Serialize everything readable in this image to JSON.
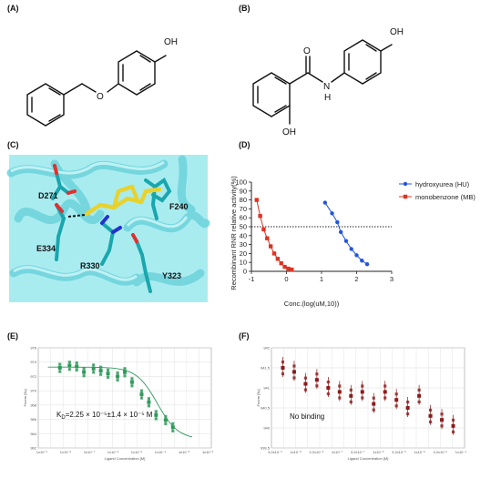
{
  "panels": {
    "a": {
      "label": "(A)",
      "atom_oh": "OH",
      "atom_o": "O"
    },
    "b": {
      "label": "(B)",
      "atom_oh_top": "OH",
      "atom_o": "O",
      "atom_n": "N",
      "atom_h": "H",
      "atom_oh_bottom": "OH"
    },
    "c": {
      "label": "(C)",
      "residues": [
        "D271",
        "F240",
        "E334",
        "R330",
        "Y323"
      ]
    },
    "d": {
      "label": "(D)"
    },
    "e": {
      "label": "(E)",
      "annotation": "K",
      "annotation_sub": "D",
      "annotation_rest": "=2.25 × 10⁻⁵±1.4 × 10⁻⁵ M"
    },
    "f": {
      "label": "(F)",
      "annotation": "No binding"
    }
  },
  "chart_data": [
    {
      "type": "line",
      "panel": "D",
      "xlabel": "Conc.(log(uM,10))",
      "ylabel": "Recombinant RNR relative activity(%)",
      "xlim": [
        -1,
        3
      ],
      "ylim": [
        0,
        100
      ],
      "xticks": [
        "-1",
        "0",
        "1",
        "2",
        "3"
      ],
      "yticks": [
        "0",
        "10",
        "20",
        "30",
        "40",
        "50",
        "60",
        "70",
        "80",
        "90",
        "100"
      ],
      "reference_line_y": 50,
      "series": [
        {
          "name": "hydroxyurea (HU)",
          "color": "#2255dd",
          "marker": "circle",
          "x": [
            1.1,
            1.3,
            1.45,
            1.55,
            1.7,
            1.85,
            2.0,
            2.15,
            2.3
          ],
          "y": [
            77,
            65,
            55,
            44,
            34,
            25,
            18,
            12,
            8
          ]
        },
        {
          "name": "monobenzone (MB)",
          "color": "#dd3322",
          "marker": "square",
          "x": [
            -0.85,
            -0.75,
            -0.65,
            -0.55,
            -0.45,
            -0.35,
            -0.25,
            -0.15,
            -0.05,
            0.05,
            0.15
          ],
          "y": [
            80,
            62,
            47,
            37,
            28,
            20,
            14,
            9,
            5,
            3,
            2
          ]
        }
      ]
    },
    {
      "type": "scatter",
      "panel": "E",
      "xlabel": "Ligand Concentration [M]",
      "ylabel": "Fnorm [‰]",
      "yticks": [
        "962",
        "964",
        "966",
        "968",
        "970",
        "972",
        "974",
        "976"
      ],
      "ylim": [
        962,
        976
      ],
      "xticks": [
        "1x10⁻⁹",
        "1x10⁻⁸",
        "1x10⁻⁷",
        "1x10⁻⁶",
        "1x10⁻⁵",
        "1x10⁻⁴",
        "1x10⁻³",
        "1x10⁻²"
      ],
      "color": "#2e9a5a",
      "x_log": [
        -8.7,
        -8.3,
        -8.0,
        -7.7,
        -7.3,
        -7.0,
        -6.7,
        -6.3,
        -6.0,
        -5.7,
        -5.3,
        -5.0,
        -4.7,
        -4.3,
        -4.0
      ],
      "y": [
        973.2,
        973.5,
        973.4,
        972.6,
        973.1,
        972.8,
        972.4,
        972.0,
        972.6,
        971.2,
        969.5,
        968.4,
        966.6,
        965.9,
        964.9
      ],
      "fit_x_log": [
        -9.2,
        -4.0
      ],
      "annotation": "K_D=2.25 × 10⁻⁵±1.4 × 10⁻⁵ M"
    },
    {
      "type": "scatter",
      "panel": "F",
      "xlabel": "Ligand Concentration [M]",
      "ylabel": "Fnorm [‰]",
      "yticks": [
        "939.5",
        "940",
        "940.5",
        "941",
        "941.5",
        "942"
      ],
      "ylim": [
        939.5,
        942
      ],
      "xticks": [
        "3.2x10⁻⁹",
        "1x10⁻⁸",
        "3.2x10⁻⁸",
        "1x10⁻⁷",
        "3.2x10⁻⁷",
        "1x10⁻⁶",
        "3.2x10⁻⁶",
        "1x10⁻⁵",
        "3.2x10⁻⁵",
        "1x10⁻⁴"
      ],
      "color": "#8b1a1a",
      "x_log": [
        -8.6,
        -8.3,
        -8.0,
        -7.7,
        -7.4,
        -7.1,
        -6.8,
        -6.5,
        -6.2,
        -5.9,
        -5.6,
        -5.3,
        -5.0,
        -4.7,
        -4.4,
        -4.1
      ],
      "y": [
        941.5,
        941.4,
        941.1,
        941.2,
        941.0,
        940.9,
        940.8,
        940.9,
        940.6,
        940.9,
        940.7,
        940.5,
        940.8,
        940.3,
        940.2,
        940.05
      ],
      "annotation": "No binding"
    }
  ],
  "colors": {
    "protein": "#86e1e8",
    "ligand": "#e8d22e",
    "residue": "#2ebfc6",
    "oxygen": "#e03030",
    "nitrogen": "#2233cc"
  }
}
